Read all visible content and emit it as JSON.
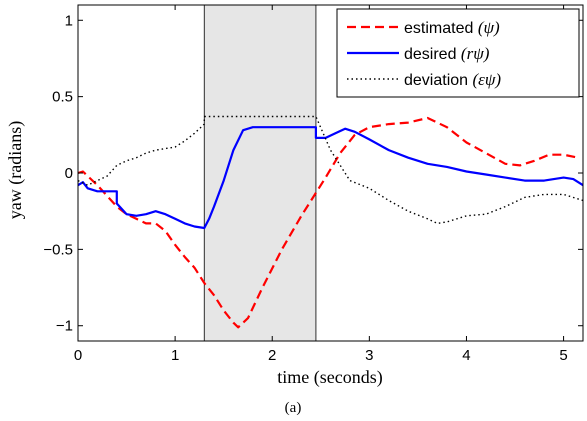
{
  "chart_data": {
    "type": "line",
    "xlabel": "time (seconds)",
    "ylabel": "yaw (radians)",
    "caption": "(a)",
    "xlim": [
      0,
      5.2
    ],
    "ylim": [
      -1.1,
      1.1
    ],
    "xticks": [
      0,
      1,
      2,
      3,
      4,
      5
    ],
    "xtick_labels": [
      "0",
      "1",
      "2",
      "3",
      "4",
      "5"
    ],
    "yticks": [
      -1,
      -0.5,
      0,
      0.5,
      1
    ],
    "ytick_labels": [
      "−1",
      "−0.5",
      "0",
      "0.5",
      "1"
    ],
    "grid": false,
    "legend_position": "top-right",
    "shaded_region": {
      "x": [
        1.3,
        2.45
      ],
      "color": "#e6e6e6"
    },
    "series": [
      {
        "name": "estimated",
        "name_math": "(ψ)",
        "color": "#ff0000",
        "style": "dashed",
        "x": [
          0,
          0.05,
          0.1,
          0.2,
          0.3,
          0.4,
          0.5,
          0.6,
          0.7,
          0.8,
          0.9,
          1.0,
          1.1,
          1.2,
          1.3,
          1.4,
          1.5,
          1.6,
          1.65,
          1.75,
          1.9,
          2.1,
          2.3,
          2.45,
          2.55,
          2.7,
          2.85,
          3.0,
          3.2,
          3.4,
          3.6,
          3.8,
          4.0,
          4.2,
          4.4,
          4.55,
          4.7,
          4.85,
          5.0,
          5.15
        ],
        "y": [
          0.0,
          0.01,
          -0.02,
          -0.08,
          -0.15,
          -0.22,
          -0.27,
          -0.3,
          -0.33,
          -0.33,
          -0.38,
          -0.47,
          -0.55,
          -0.62,
          -0.72,
          -0.8,
          -0.9,
          -0.98,
          -1.01,
          -0.95,
          -0.75,
          -0.5,
          -0.28,
          -0.13,
          -0.03,
          0.13,
          0.25,
          0.3,
          0.32,
          0.33,
          0.36,
          0.3,
          0.2,
          0.13,
          0.06,
          0.05,
          0.08,
          0.12,
          0.12,
          0.1
        ]
      },
      {
        "name": "desired",
        "name_math": "(rψ)",
        "color": "#0000ff",
        "style": "solid",
        "x": [
          0,
          0.05,
          0.1,
          0.2,
          0.3,
          0.4,
          0.4,
          0.5,
          0.6,
          0.7,
          0.8,
          0.9,
          1.0,
          1.1,
          1.2,
          1.3,
          1.35,
          1.4,
          1.5,
          1.6,
          1.7,
          1.8,
          1.9,
          2.0,
          2.1,
          2.2,
          2.3,
          2.45,
          2.45,
          2.55,
          2.65,
          2.75,
          2.85,
          3.0,
          3.2,
          3.4,
          3.6,
          3.8,
          4.0,
          4.2,
          4.4,
          4.6,
          4.8,
          5.0,
          5.1,
          5.2
        ],
        "y": [
          -0.08,
          -0.06,
          -0.1,
          -0.12,
          -0.12,
          -0.12,
          -0.2,
          -0.27,
          -0.28,
          -0.27,
          -0.25,
          -0.27,
          -0.3,
          -0.33,
          -0.35,
          -0.36,
          -0.3,
          -0.22,
          -0.05,
          0.15,
          0.28,
          0.3,
          0.3,
          0.3,
          0.3,
          0.3,
          0.3,
          0.3,
          0.23,
          0.23,
          0.26,
          0.29,
          0.27,
          0.22,
          0.15,
          0.1,
          0.06,
          0.04,
          0.01,
          -0.01,
          -0.03,
          -0.05,
          -0.05,
          -0.03,
          -0.04,
          -0.08
        ]
      },
      {
        "name": "deviation",
        "name_math": "(εψ)",
        "color": "#000000",
        "style": "dotted",
        "x": [
          0,
          0.1,
          0.2,
          0.3,
          0.4,
          0.5,
          0.6,
          0.7,
          0.8,
          0.9,
          1.0,
          1.1,
          1.2,
          1.3,
          1.3,
          1.5,
          1.7,
          1.9,
          2.1,
          2.3,
          2.45,
          2.6,
          2.8,
          3.0,
          3.2,
          3.4,
          3.6,
          3.7,
          3.8,
          4.0,
          4.2,
          4.4,
          4.6,
          4.8,
          5.0,
          5.2
        ],
        "y": [
          -0.05,
          -0.08,
          -0.05,
          -0.02,
          0.05,
          0.08,
          0.1,
          0.13,
          0.15,
          0.16,
          0.17,
          0.21,
          0.26,
          0.32,
          0.37,
          0.37,
          0.37,
          0.37,
          0.37,
          0.37,
          0.37,
          0.15,
          -0.05,
          -0.1,
          -0.18,
          -0.25,
          -0.3,
          -0.33,
          -0.32,
          -0.28,
          -0.27,
          -0.22,
          -0.16,
          -0.14,
          -0.14,
          -0.18
        ]
      }
    ]
  }
}
